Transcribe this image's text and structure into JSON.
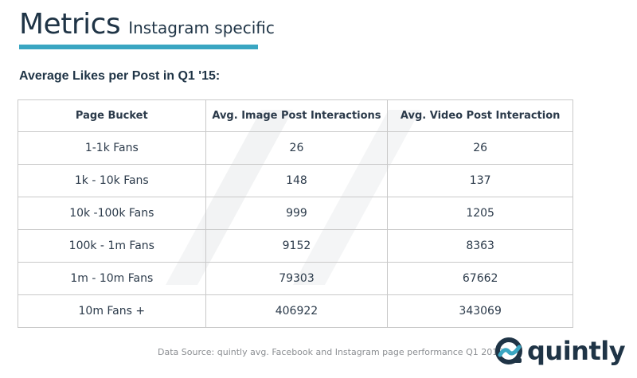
{
  "header": {
    "title": "Metrics",
    "subtitle": "Instagram specific"
  },
  "section": {
    "heading": "Average Likes per Post in Q1 '15:"
  },
  "table": {
    "columns": [
      "Page Bucket",
      "Avg. Image Post Interactions",
      "Avg. Video Post Interaction"
    ],
    "rows": [
      [
        "1-1k Fans",
        "26",
        "26"
      ],
      [
        "1k - 10k Fans",
        "148",
        "137"
      ],
      [
        "10k -100k Fans",
        "999",
        "1205"
      ],
      [
        "100k - 1m Fans",
        "9152",
        "8363"
      ],
      [
        "1m - 10m Fans",
        "79303",
        "67662"
      ],
      [
        "10m Fans +",
        "406922",
        "343069"
      ]
    ]
  },
  "footer": {
    "source": "Data Source: quintly avg. Facebook and Instagram page performance Q1 2015",
    "brand": "quintly"
  },
  "colors": {
    "accent": "#3aa6c2",
    "heading": "#1f3446",
    "border": "#c9c9c9"
  }
}
